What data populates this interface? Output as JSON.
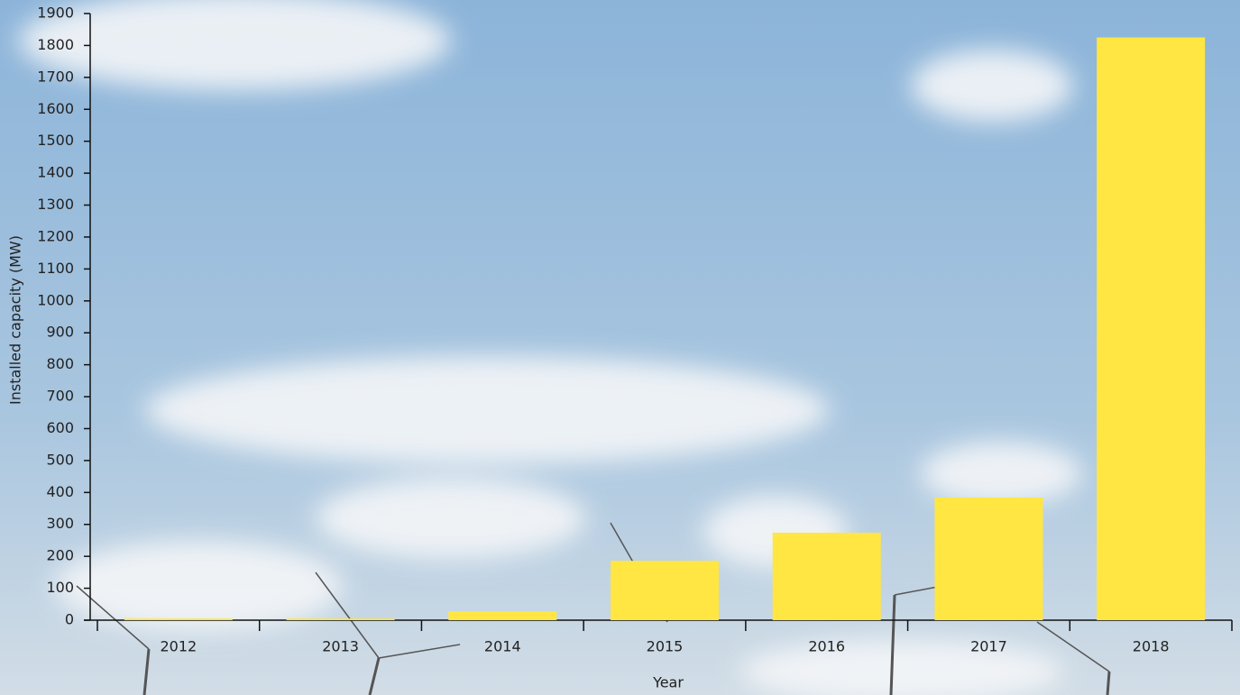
{
  "chart_data": {
    "type": "bar",
    "x_label": "Year",
    "y_label": "Installed capacity (MW)",
    "categories": [
      "2012",
      "2013",
      "2014",
      "2015",
      "2016",
      "2017",
      "2018"
    ],
    "values": [
      5,
      5,
      28,
      186,
      274,
      384,
      1825
    ],
    "color": "#ffe642",
    "ylim": [
      0,
      1900
    ],
    "yticks": [
      0,
      100,
      200,
      300,
      400,
      500,
      600,
      700,
      800,
      900,
      1000,
      1100,
      1200,
      1300,
      1400,
      1500,
      1600,
      1700,
      1800,
      1900
    ],
    "grid": false
  }
}
